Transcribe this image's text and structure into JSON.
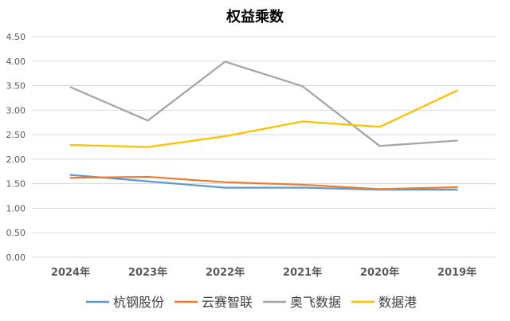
{
  "chart_data": {
    "type": "line",
    "title": "权益乘数",
    "categories": [
      "2024年",
      "2023年",
      "2022年",
      "2021年",
      "2020年",
      "2019年"
    ],
    "yticks": [
      "0.00",
      "0.50",
      "1.00",
      "1.50",
      "2.00",
      "2.50",
      "3.00",
      "3.50",
      "4.00",
      "4.50"
    ],
    "ylim": [
      0,
      4.5
    ],
    "grid": true,
    "legend_position": "bottom",
    "series": [
      {
        "name": "杭钢股份",
        "color": "#5B9BD5",
        "values": [
          1.68,
          1.55,
          1.42,
          1.42,
          1.38,
          1.38
        ]
      },
      {
        "name": "云赛智联",
        "color": "#ED7D31",
        "values": [
          1.62,
          1.64,
          1.53,
          1.48,
          1.39,
          1.43
        ]
      },
      {
        "name": "奥飞数据",
        "color": "#A5A5A5",
        "values": [
          3.47,
          2.79,
          3.99,
          3.49,
          2.27,
          2.38
        ]
      },
      {
        "name": "数据港",
        "color": "#FFC000",
        "values": [
          2.29,
          2.25,
          2.47,
          2.77,
          2.66,
          3.4
        ]
      }
    ]
  }
}
